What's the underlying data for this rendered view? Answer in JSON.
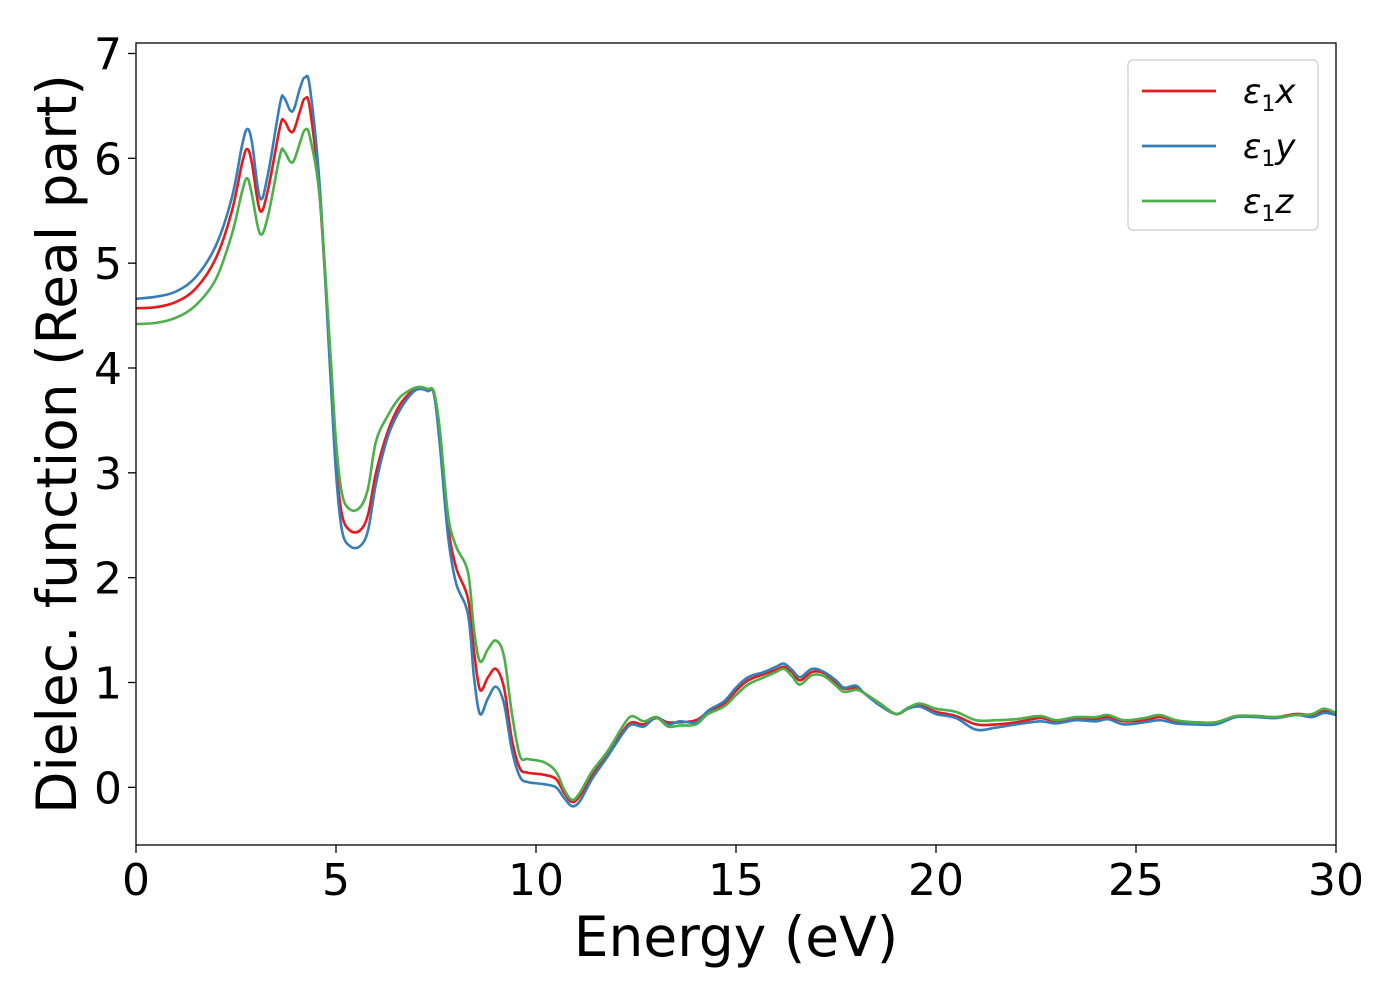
{
  "chart_data": {
    "type": "line",
    "xlabel": "Energy (eV)",
    "ylabel": "Dielec. function (Real part)",
    "xlim": [
      0,
      30
    ],
    "ylim": [
      -0.55,
      7.1
    ],
    "xticks": [
      0,
      5,
      10,
      15,
      20,
      25,
      30
    ],
    "yticks": [
      0,
      1,
      2,
      3,
      4,
      5,
      6,
      7
    ],
    "grid": false,
    "legend_position": "top-right",
    "series": [
      {
        "name": "ε1x",
        "base": "ε",
        "sub": "1",
        "suffix": "x",
        "color": "#e41a1c",
        "points": [
          [
            0,
            4.57
          ],
          [
            0.5,
            4.58
          ],
          [
            1.0,
            4.63
          ],
          [
            1.5,
            4.76
          ],
          [
            2.0,
            5.05
          ],
          [
            2.4,
            5.5
          ],
          [
            2.65,
            5.95
          ],
          [
            2.78,
            6.09
          ],
          [
            2.9,
            5.95
          ],
          [
            3.1,
            5.5
          ],
          [
            3.3,
            5.7
          ],
          [
            3.6,
            6.3
          ],
          [
            3.7,
            6.36
          ],
          [
            3.85,
            6.26
          ],
          [
            3.95,
            6.27
          ],
          [
            4.1,
            6.45
          ],
          [
            4.22,
            6.57
          ],
          [
            4.35,
            6.47
          ],
          [
            4.6,
            5.6
          ],
          [
            4.85,
            4.1
          ],
          [
            5.0,
            3.1
          ],
          [
            5.15,
            2.6
          ],
          [
            5.35,
            2.45
          ],
          [
            5.6,
            2.45
          ],
          [
            5.8,
            2.6
          ],
          [
            6.0,
            3.0
          ],
          [
            6.3,
            3.4
          ],
          [
            6.6,
            3.65
          ],
          [
            6.9,
            3.78
          ],
          [
            7.1,
            3.81
          ],
          [
            7.3,
            3.79
          ],
          [
            7.45,
            3.75
          ],
          [
            7.6,
            3.3
          ],
          [
            7.8,
            2.5
          ],
          [
            8.0,
            2.1
          ],
          [
            8.3,
            1.8
          ],
          [
            8.45,
            1.3
          ],
          [
            8.6,
            0.93
          ],
          [
            8.8,
            1.05
          ],
          [
            9.0,
            1.13
          ],
          [
            9.2,
            0.95
          ],
          [
            9.4,
            0.45
          ],
          [
            9.6,
            0.18
          ],
          [
            9.8,
            0.14
          ],
          [
            10.2,
            0.12
          ],
          [
            10.5,
            0.08
          ],
          [
            10.7,
            -0.05
          ],
          [
            10.9,
            -0.14
          ],
          [
            11.1,
            -0.08
          ],
          [
            11.4,
            0.12
          ],
          [
            11.8,
            0.32
          ],
          [
            12.2,
            0.55
          ],
          [
            12.4,
            0.62
          ],
          [
            12.7,
            0.6
          ],
          [
            13.0,
            0.66
          ],
          [
            13.3,
            0.62
          ],
          [
            13.6,
            0.62
          ],
          [
            14.0,
            0.64
          ],
          [
            14.3,
            0.72
          ],
          [
            14.7,
            0.8
          ],
          [
            15.0,
            0.92
          ],
          [
            15.3,
            1.02
          ],
          [
            15.7,
            1.08
          ],
          [
            16.0,
            1.12
          ],
          [
            16.2,
            1.15
          ],
          [
            16.4,
            1.1
          ],
          [
            16.6,
            1.02
          ],
          [
            16.9,
            1.1
          ],
          [
            17.2,
            1.09
          ],
          [
            17.5,
            1.0
          ],
          [
            17.7,
            0.94
          ],
          [
            18.0,
            0.95
          ],
          [
            18.2,
            0.9
          ],
          [
            18.6,
            0.8
          ],
          [
            19.0,
            0.7
          ],
          [
            19.3,
            0.75
          ],
          [
            19.6,
            0.78
          ],
          [
            20.0,
            0.72
          ],
          [
            20.5,
            0.68
          ],
          [
            21.0,
            0.6
          ],
          [
            21.5,
            0.6
          ],
          [
            22.0,
            0.62
          ],
          [
            22.6,
            0.66
          ],
          [
            23.0,
            0.63
          ],
          [
            23.5,
            0.66
          ],
          [
            24.0,
            0.65
          ],
          [
            24.3,
            0.67
          ],
          [
            24.7,
            0.63
          ],
          [
            25.2,
            0.64
          ],
          [
            25.6,
            0.67
          ],
          [
            26.0,
            0.63
          ],
          [
            26.5,
            0.62
          ],
          [
            27.0,
            0.62
          ],
          [
            27.5,
            0.68
          ],
          [
            28.0,
            0.68
          ],
          [
            28.5,
            0.67
          ],
          [
            29.0,
            0.7
          ],
          [
            29.4,
            0.69
          ],
          [
            29.7,
            0.73
          ],
          [
            30.0,
            0.7
          ]
        ]
      },
      {
        "name": "ε1y",
        "base": "ε",
        "sub": "1",
        "suffix": "y",
        "color": "#377eb8",
        "points": [
          [
            0,
            4.66
          ],
          [
            0.5,
            4.68
          ],
          [
            1.0,
            4.73
          ],
          [
            1.5,
            4.87
          ],
          [
            2.0,
            5.17
          ],
          [
            2.4,
            5.63
          ],
          [
            2.65,
            6.12
          ],
          [
            2.78,
            6.28
          ],
          [
            2.9,
            6.15
          ],
          [
            3.1,
            5.62
          ],
          [
            3.3,
            5.85
          ],
          [
            3.6,
            6.52
          ],
          [
            3.7,
            6.58
          ],
          [
            3.85,
            6.46
          ],
          [
            3.95,
            6.47
          ],
          [
            4.1,
            6.67
          ],
          [
            4.22,
            6.77
          ],
          [
            4.35,
            6.67
          ],
          [
            4.6,
            5.7
          ],
          [
            4.85,
            4.0
          ],
          [
            5.0,
            3.0
          ],
          [
            5.15,
            2.45
          ],
          [
            5.35,
            2.3
          ],
          [
            5.6,
            2.3
          ],
          [
            5.8,
            2.45
          ],
          [
            6.0,
            2.9
          ],
          [
            6.3,
            3.35
          ],
          [
            6.6,
            3.6
          ],
          [
            6.9,
            3.76
          ],
          [
            7.1,
            3.8
          ],
          [
            7.3,
            3.78
          ],
          [
            7.45,
            3.75
          ],
          [
            7.6,
            3.25
          ],
          [
            7.8,
            2.4
          ],
          [
            8.0,
            1.95
          ],
          [
            8.3,
            1.65
          ],
          [
            8.45,
            1.05
          ],
          [
            8.6,
            0.7
          ],
          [
            8.8,
            0.85
          ],
          [
            9.0,
            0.96
          ],
          [
            9.2,
            0.8
          ],
          [
            9.4,
            0.35
          ],
          [
            9.6,
            0.1
          ],
          [
            9.8,
            0.05
          ],
          [
            10.2,
            0.03
          ],
          [
            10.5,
            0.0
          ],
          [
            10.7,
            -0.1
          ],
          [
            10.9,
            -0.18
          ],
          [
            11.1,
            -0.13
          ],
          [
            11.4,
            0.08
          ],
          [
            11.8,
            0.3
          ],
          [
            12.2,
            0.53
          ],
          [
            12.4,
            0.6
          ],
          [
            12.7,
            0.58
          ],
          [
            13.0,
            0.67
          ],
          [
            13.3,
            0.6
          ],
          [
            13.6,
            0.63
          ],
          [
            14.0,
            0.62
          ],
          [
            14.3,
            0.73
          ],
          [
            14.7,
            0.82
          ],
          [
            15.0,
            0.95
          ],
          [
            15.3,
            1.05
          ],
          [
            15.7,
            1.1
          ],
          [
            16.0,
            1.15
          ],
          [
            16.2,
            1.18
          ],
          [
            16.4,
            1.12
          ],
          [
            16.6,
            1.05
          ],
          [
            16.9,
            1.13
          ],
          [
            17.2,
            1.1
          ],
          [
            17.5,
            1.02
          ],
          [
            17.7,
            0.95
          ],
          [
            18.0,
            0.97
          ],
          [
            18.2,
            0.9
          ],
          [
            18.6,
            0.78
          ],
          [
            19.0,
            0.7
          ],
          [
            19.3,
            0.75
          ],
          [
            19.6,
            0.77
          ],
          [
            20.0,
            0.7
          ],
          [
            20.5,
            0.66
          ],
          [
            21.0,
            0.55
          ],
          [
            21.5,
            0.57
          ],
          [
            22.0,
            0.6
          ],
          [
            22.6,
            0.63
          ],
          [
            23.0,
            0.61
          ],
          [
            23.5,
            0.64
          ],
          [
            24.0,
            0.63
          ],
          [
            24.3,
            0.65
          ],
          [
            24.7,
            0.6
          ],
          [
            25.2,
            0.62
          ],
          [
            25.6,
            0.64
          ],
          [
            26.0,
            0.61
          ],
          [
            26.5,
            0.6
          ],
          [
            27.0,
            0.6
          ],
          [
            27.5,
            0.67
          ],
          [
            28.0,
            0.67
          ],
          [
            28.5,
            0.66
          ],
          [
            29.0,
            0.69
          ],
          [
            29.4,
            0.67
          ],
          [
            29.7,
            0.71
          ],
          [
            30.0,
            0.69
          ]
        ]
      },
      {
        "name": "ε1z",
        "base": "ε",
        "sub": "1",
        "suffix": "z",
        "color": "#4daf4a",
        "points": [
          [
            0,
            4.42
          ],
          [
            0.5,
            4.43
          ],
          [
            1.0,
            4.48
          ],
          [
            1.5,
            4.6
          ],
          [
            2.0,
            4.85
          ],
          [
            2.4,
            5.28
          ],
          [
            2.65,
            5.68
          ],
          [
            2.78,
            5.81
          ],
          [
            2.9,
            5.65
          ],
          [
            3.1,
            5.28
          ],
          [
            3.3,
            5.45
          ],
          [
            3.6,
            6.03
          ],
          [
            3.7,
            6.07
          ],
          [
            3.85,
            5.97
          ],
          [
            3.95,
            5.98
          ],
          [
            4.1,
            6.15
          ],
          [
            4.22,
            6.27
          ],
          [
            4.35,
            6.2
          ],
          [
            4.6,
            5.6
          ],
          [
            4.85,
            4.2
          ],
          [
            5.0,
            3.3
          ],
          [
            5.15,
            2.8
          ],
          [
            5.35,
            2.65
          ],
          [
            5.6,
            2.67
          ],
          [
            5.8,
            2.85
          ],
          [
            6.0,
            3.3
          ],
          [
            6.3,
            3.55
          ],
          [
            6.6,
            3.72
          ],
          [
            6.9,
            3.8
          ],
          [
            7.1,
            3.82
          ],
          [
            7.3,
            3.8
          ],
          [
            7.45,
            3.77
          ],
          [
            7.6,
            3.4
          ],
          [
            7.8,
            2.6
          ],
          [
            8.0,
            2.3
          ],
          [
            8.3,
            2.05
          ],
          [
            8.45,
            1.5
          ],
          [
            8.6,
            1.2
          ],
          [
            8.8,
            1.32
          ],
          [
            9.0,
            1.4
          ],
          [
            9.2,
            1.25
          ],
          [
            9.4,
            0.7
          ],
          [
            9.6,
            0.3
          ],
          [
            9.8,
            0.27
          ],
          [
            10.2,
            0.24
          ],
          [
            10.5,
            0.15
          ],
          [
            10.7,
            -0.02
          ],
          [
            10.9,
            -0.12
          ],
          [
            11.1,
            -0.05
          ],
          [
            11.4,
            0.15
          ],
          [
            11.8,
            0.35
          ],
          [
            12.2,
            0.6
          ],
          [
            12.4,
            0.68
          ],
          [
            12.7,
            0.63
          ],
          [
            13.0,
            0.67
          ],
          [
            13.3,
            0.58
          ],
          [
            13.6,
            0.59
          ],
          [
            14.0,
            0.6
          ],
          [
            14.3,
            0.7
          ],
          [
            14.7,
            0.77
          ],
          [
            15.0,
            0.88
          ],
          [
            15.3,
            0.98
          ],
          [
            15.7,
            1.05
          ],
          [
            16.0,
            1.1
          ],
          [
            16.2,
            1.13
          ],
          [
            16.4,
            1.06
          ],
          [
            16.6,
            0.98
          ],
          [
            16.9,
            1.07
          ],
          [
            17.2,
            1.06
          ],
          [
            17.5,
            0.97
          ],
          [
            17.7,
            0.91
          ],
          [
            18.0,
            0.93
          ],
          [
            18.2,
            0.9
          ],
          [
            18.6,
            0.8
          ],
          [
            19.0,
            0.7
          ],
          [
            19.3,
            0.76
          ],
          [
            19.6,
            0.8
          ],
          [
            20.0,
            0.75
          ],
          [
            20.5,
            0.72
          ],
          [
            21.0,
            0.64
          ],
          [
            21.5,
            0.64
          ],
          [
            22.0,
            0.65
          ],
          [
            22.6,
            0.68
          ],
          [
            23.0,
            0.64
          ],
          [
            23.5,
            0.67
          ],
          [
            24.0,
            0.67
          ],
          [
            24.3,
            0.69
          ],
          [
            24.7,
            0.64
          ],
          [
            25.2,
            0.66
          ],
          [
            25.6,
            0.69
          ],
          [
            26.0,
            0.64
          ],
          [
            26.5,
            0.62
          ],
          [
            27.0,
            0.62
          ],
          [
            27.5,
            0.68
          ],
          [
            28.0,
            0.68
          ],
          [
            28.5,
            0.67
          ],
          [
            29.0,
            0.69
          ],
          [
            29.4,
            0.7
          ],
          [
            29.7,
            0.75
          ],
          [
            30.0,
            0.71
          ]
        ]
      }
    ]
  }
}
